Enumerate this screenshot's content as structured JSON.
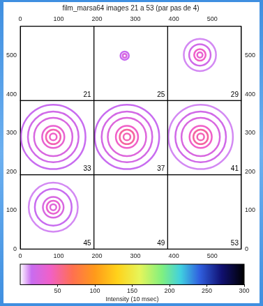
{
  "chart_data": {
    "type": "image_grid",
    "title": "film_marsa64 images 21 a 53 (par pas de 4)",
    "xlim": [
      0,
      576
    ],
    "ylim": [
      0,
      576
    ],
    "xticks": [
      0,
      100,
      200,
      300,
      400,
      500
    ],
    "yticks": [
      0,
      100,
      200,
      300,
      400,
      500
    ],
    "grid": false,
    "panels": [
      {
        "label": "21",
        "xlim": [
          0,
          192
        ],
        "ylim": [
          384,
          576
        ],
        "rings": []
      },
      {
        "label": "25",
        "xlim": [
          192,
          384
        ],
        "ylim": [
          384,
          576
        ],
        "rings": [
          {
            "center": [
              272,
              500
            ],
            "radius": 5,
            "intensity": 25
          },
          {
            "center": [
              272,
              500
            ],
            "radius": 11,
            "intensity": 15
          }
        ]
      },
      {
        "label": "29",
        "xlim": [
          384,
          576
        ],
        "ylim": [
          384,
          576
        ],
        "rings": [
          {
            "center": [
              468,
              502
            ],
            "radius": 7,
            "intensity": 35
          },
          {
            "center": [
              468,
              502
            ],
            "radius": 15,
            "intensity": 40
          },
          {
            "center": [
              468,
              502
            ],
            "radius": 28,
            "intensity": 20
          },
          {
            "center": [
              468,
              502
            ],
            "radius": 42,
            "intensity": 12
          }
        ]
      },
      {
        "label": "33",
        "xlim": [
          0,
          192
        ],
        "ylim": [
          192,
          384
        ],
        "rings": [
          {
            "center": [
              86,
              290
            ],
            "radius": 9,
            "intensity": 40
          },
          {
            "center": [
              86,
              290
            ],
            "radius": 19,
            "intensity": 45
          },
          {
            "center": [
              86,
              290
            ],
            "radius": 29,
            "intensity": 35
          },
          {
            "center": [
              86,
              290
            ],
            "radius": 50,
            "intensity": 25
          },
          {
            "center": [
              86,
              290
            ],
            "radius": 66,
            "intensity": 20
          },
          {
            "center": [
              86,
              290
            ],
            "radius": 84,
            "intensity": 15
          }
        ]
      },
      {
        "label": "37",
        "xlim": [
          192,
          384
        ],
        "ylim": [
          192,
          384
        ],
        "rings": [
          {
            "center": [
              278,
              290
            ],
            "radius": 9,
            "intensity": 45
          },
          {
            "center": [
              278,
              290
            ],
            "radius": 19,
            "intensity": 50
          },
          {
            "center": [
              278,
              290
            ],
            "radius": 29,
            "intensity": 40
          },
          {
            "center": [
              278,
              290
            ],
            "radius": 50,
            "intensity": 28
          },
          {
            "center": [
              278,
              290
            ],
            "radius": 66,
            "intensity": 22
          },
          {
            "center": [
              278,
              290
            ],
            "radius": 84,
            "intensity": 15
          }
        ]
      },
      {
        "label": "41",
        "xlim": [
          384,
          576
        ],
        "ylim": [
          192,
          384
        ],
        "rings": [
          {
            "center": [
              470,
              290
            ],
            "radius": 9,
            "intensity": 45
          },
          {
            "center": [
              470,
              290
            ],
            "radius": 19,
            "intensity": 50
          },
          {
            "center": [
              470,
              290
            ],
            "radius": 29,
            "intensity": 40
          },
          {
            "center": [
              470,
              290
            ],
            "radius": 50,
            "intensity": 25
          },
          {
            "center": [
              470,
              290
            ],
            "radius": 66,
            "intensity": 20
          },
          {
            "center": [
              470,
              290
            ],
            "radius": 84,
            "intensity": 12
          }
        ]
      },
      {
        "label": "45",
        "xlim": [
          0,
          192
        ],
        "ylim": [
          0,
          192
        ],
        "rings": [
          {
            "center": [
              86,
              108
            ],
            "radius": 8,
            "intensity": 30
          },
          {
            "center": [
              86,
              108
            ],
            "radius": 17,
            "intensity": 35
          },
          {
            "center": [
              86,
              108
            ],
            "radius": 27,
            "intensity": 25
          },
          {
            "center": [
              86,
              108
            ],
            "radius": 48,
            "intensity": 15
          },
          {
            "center": [
              86,
              108
            ],
            "radius": 64,
            "intensity": 12
          }
        ]
      },
      {
        "label": "49",
        "xlim": [
          192,
          384
        ],
        "ylim": [
          0,
          192
        ],
        "rings": []
      },
      {
        "label": "53",
        "xlim": [
          384,
          576
        ],
        "ylim": [
          0,
          192
        ],
        "rings": []
      }
    ],
    "color_bar": {
      "label": "Intensity (10 msec)",
      "range": [
        0,
        300
      ],
      "ticks": [
        50,
        100,
        150,
        200,
        250,
        300
      ],
      "stops": [
        0,
        15,
        40,
        70,
        100,
        130,
        160,
        190,
        215,
        240,
        270,
        300
      ],
      "colors": [
        "#ffffff",
        "#c86cf0",
        "#f060c8",
        "#ff7050",
        "#ff9a1a",
        "#ffd21a",
        "#e6f55a",
        "#80f080",
        "#40d0e0",
        "#3060e0",
        "#101070",
        "#000000"
      ]
    }
  }
}
